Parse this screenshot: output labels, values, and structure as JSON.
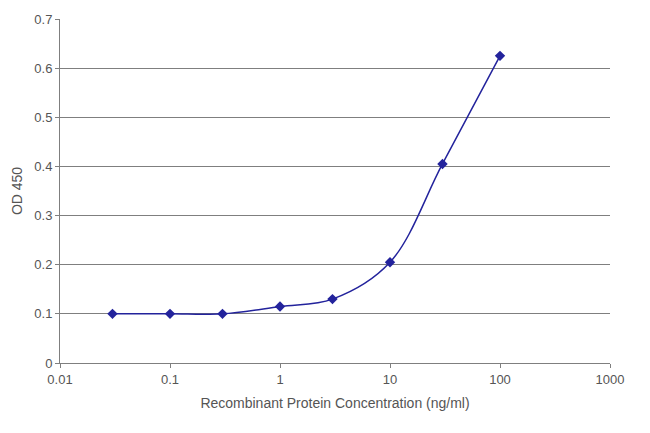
{
  "chart_data": {
    "type": "line",
    "x_label": "Recombinant Protein Concentration (ng/ml)",
    "y_label": "OD 450",
    "x": [
      0.03,
      0.1,
      0.3,
      1,
      3,
      10,
      30,
      100
    ],
    "values": [
      0.1,
      0.1,
      0.1,
      0.115,
      0.13,
      0.205,
      0.405,
      0.625
    ],
    "color": "#23239c",
    "marker": "diamond",
    "line_style": "smooth",
    "log": "x",
    "xlim": [
      0.01,
      1000
    ],
    "xticks": [
      0.01,
      0.1,
      1,
      10,
      100,
      1000
    ],
    "ylim": [
      0,
      0.7
    ],
    "yticks": [
      0,
      0.1,
      0.2,
      0.3,
      0.4,
      0.5,
      0.6,
      0.7
    ],
    "grid": "y"
  }
}
